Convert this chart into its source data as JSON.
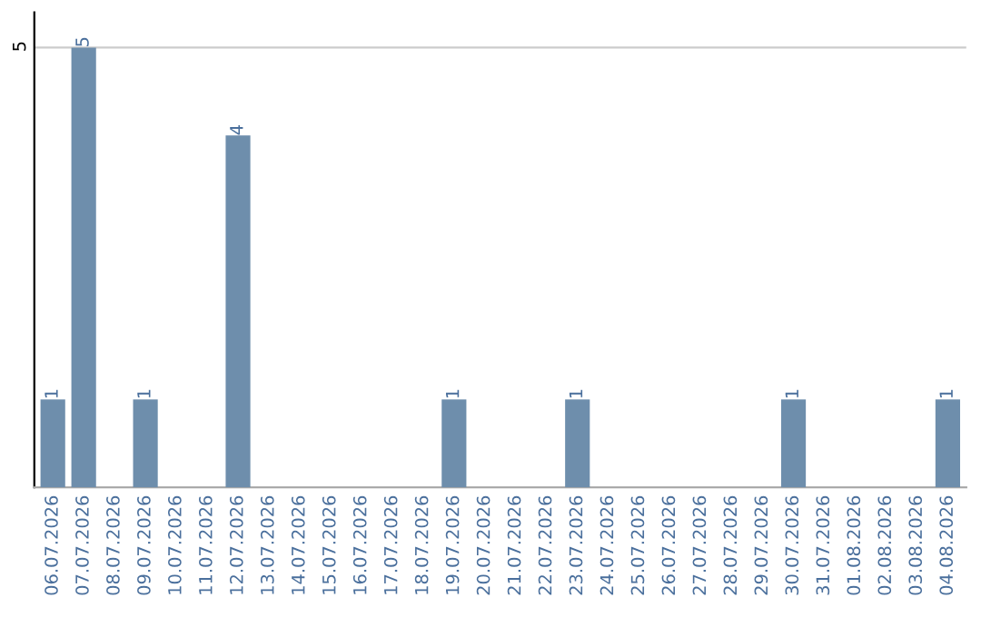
{
  "chart_data": {
    "type": "bar",
    "categories": [
      "06.07.2026",
      "07.07.2026",
      "08.07.2026",
      "09.07.2026",
      "10.07.2026",
      "11.07.2026",
      "12.07.2026",
      "13.07.2026",
      "14.07.2026",
      "15.07.2026",
      "16.07.2026",
      "17.07.2026",
      "18.07.2026",
      "19.07.2026",
      "20.07.2026",
      "21.07.2026",
      "22.07.2026",
      "23.07.2026",
      "24.07.2026",
      "25.07.2026",
      "26.07.2026",
      "27.07.2026",
      "28.07.2026",
      "29.07.2026",
      "30.07.2026",
      "31.07.2026",
      "01.08.2026",
      "02.08.2026",
      "03.08.2026",
      "04.08.2026"
    ],
    "values": [
      1,
      5,
      0,
      1,
      0,
      0,
      4,
      0,
      0,
      0,
      0,
      0,
      0,
      1,
      0,
      0,
      0,
      1,
      0,
      0,
      0,
      0,
      0,
      0,
      1,
      0,
      0,
      0,
      0,
      1
    ],
    "value_labels": [
      "1",
      "5",
      null,
      "1",
      null,
      null,
      "4",
      null,
      null,
      null,
      null,
      null,
      null,
      "1",
      null,
      null,
      null,
      "1",
      null,
      null,
      null,
      null,
      null,
      null,
      "1",
      null,
      null,
      null,
      null,
      "1"
    ],
    "color": "#6e8eac",
    "ylim": [
      0,
      5.4
    ],
    "yticks": [
      5
    ],
    "grid": "y"
  }
}
